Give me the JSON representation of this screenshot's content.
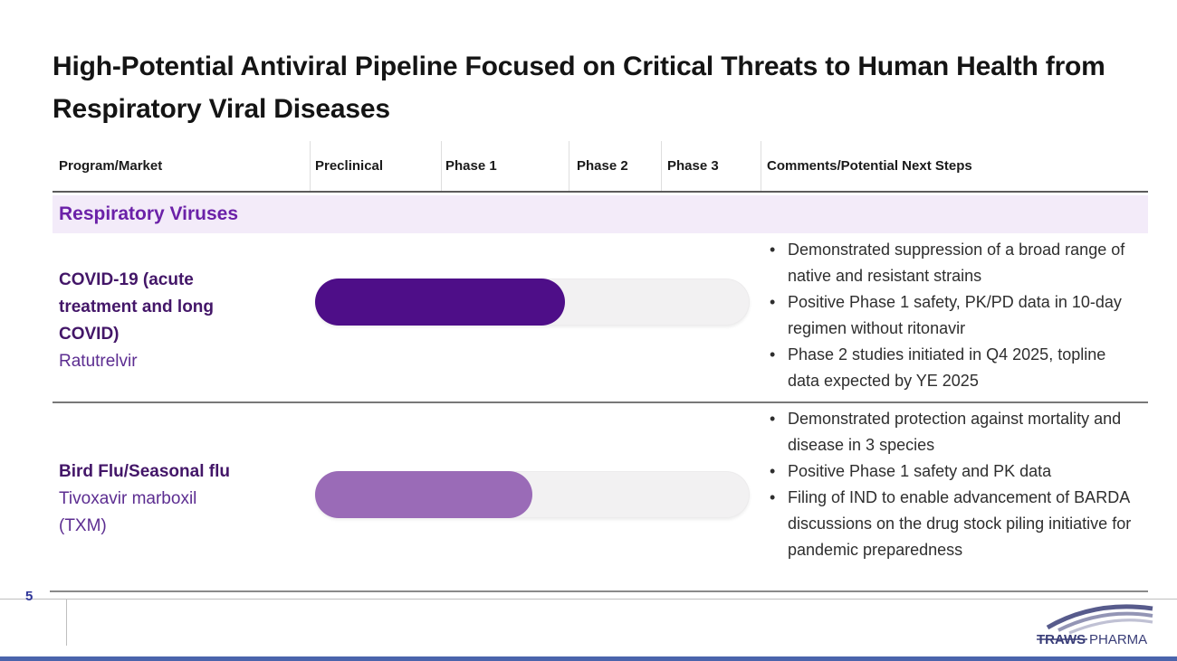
{
  "slide": {
    "title": "High-Potential Antiviral Pipeline Focused on Critical Threats to Human Health from Respiratory Viral Diseases",
    "accent_bar_color": "#4a64ac"
  },
  "pipeline_table": {
    "columns": {
      "program": "Program/Market",
      "preclinical": "Preclinical",
      "phase1": "Phase 1",
      "phase2": "Phase 2",
      "phase3": "Phase 3",
      "comments": "Comments/Potential Next Steps"
    },
    "section_header": "Respiratory Viruses",
    "section_bg": "#f3ebf9",
    "track_color": "#f2f1f2",
    "rows": [
      {
        "program": "COVID-19 (acute treatment and long COVID)",
        "drug": "Ratutrelvir",
        "bar": {
          "color": "#4e0e88",
          "fill_pct": 57.5,
          "ends_in_column": "Phase 1"
        },
        "comments": [
          "Demonstrated suppression of a broad range of native and resistant strains",
          "Positive Phase 1 safety, PK/PD data in 10-day regimen without ritonavir",
          "Phase 2 studies initiated in Q4 2025, topline data expected by YE 2025"
        ]
      },
      {
        "program": "Bird Flu/Seasonal flu",
        "drug": "Tivoxavir marboxil (TXM)",
        "bar": {
          "color": "#9a6bb7",
          "fill_pct": 50,
          "ends_in_column": "Phase 1"
        },
        "comments": [
          "Demonstrated protection against mortality and disease in 3 species",
          "Positive Phase 1 safety and PK data",
          "Filing of IND to enable advancement of BARDA discussions on the drug stock piling initiative for pandemic preparedness"
        ]
      }
    ]
  },
  "footer": {
    "page_number": "5",
    "logo_primary": "TRAWS",
    "logo_secondary": "PHARMA",
    "logo_color": "#3a3e78"
  }
}
